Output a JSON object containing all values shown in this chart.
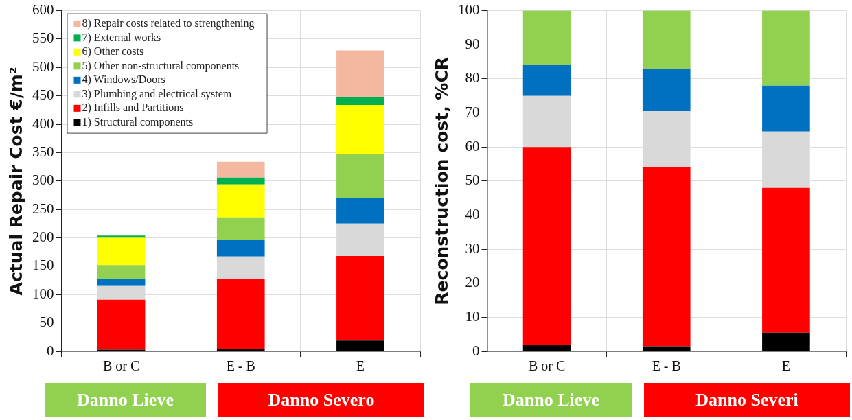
{
  "chart_data": [
    {
      "type": "bar",
      "stacked": true,
      "ylabel": "Actual Repair Cost €/m²",
      "categories": [
        "B or C",
        "E - B",
        "E"
      ],
      "ylim": [
        0,
        600
      ],
      "yticks": [
        0,
        50,
        100,
        150,
        200,
        250,
        300,
        350,
        400,
        450,
        500,
        550,
        600
      ],
      "grid": true,
      "legend": "top left",
      "annotations": [
        "Danno Lieve",
        "Danno Severo"
      ],
      "series": [
        {
          "name": "1) Structural components",
          "color": "#000000",
          "values": [
            3,
            4,
            19
          ]
        },
        {
          "name": "2) Infills and Partitions",
          "color": "#ff0000",
          "values": [
            88,
            124,
            149
          ]
        },
        {
          "name": "3) Plumbing and electrical system",
          "color": "#d9d9d9",
          "values": [
            24,
            39,
            57
          ]
        },
        {
          "name": "4) Windows/Doors",
          "color": "#0070c0",
          "values": [
            13,
            30,
            45
          ]
        },
        {
          "name": "5) Other non-structural components",
          "color": "#92d050",
          "values": [
            24,
            39,
            78
          ]
        },
        {
          "name": "6) Other costs",
          "color": "#ffff00",
          "values": [
            48,
            58,
            86
          ]
        },
        {
          "name": "7) External works",
          "color": "#00b050",
          "values": [
            4,
            12,
            14
          ]
        },
        {
          "name": "8) Repair costs related to strengthening",
          "color": "#f4b8a0",
          "values": [
            0,
            28,
            82
          ]
        }
      ]
    },
    {
      "type": "bar",
      "stacked": true,
      "ylabel": "Reconstruction cost, %CR",
      "categories": [
        "B or C",
        "E - B",
        "E"
      ],
      "ylim": [
        0,
        100
      ],
      "yticks": [
        0,
        10,
        20,
        30,
        40,
        50,
        60,
        70,
        80,
        90,
        100
      ],
      "grid": true,
      "annotations": [
        "Danno Lieve",
        "Danno Severi"
      ],
      "series": [
        {
          "color": "#000000",
          "values": [
            2,
            1.5,
            5.5
          ]
        },
        {
          "color": "#ff0000",
          "values": [
            58,
            52.5,
            42.5
          ]
        },
        {
          "color": "#d9d9d9",
          "values": [
            15,
            16.5,
            16.5
          ]
        },
        {
          "color": "#0070c0",
          "values": [
            9,
            12.5,
            13.5
          ]
        },
        {
          "color": "#92d050",
          "values": [
            16,
            17,
            22
          ]
        }
      ]
    }
  ]
}
